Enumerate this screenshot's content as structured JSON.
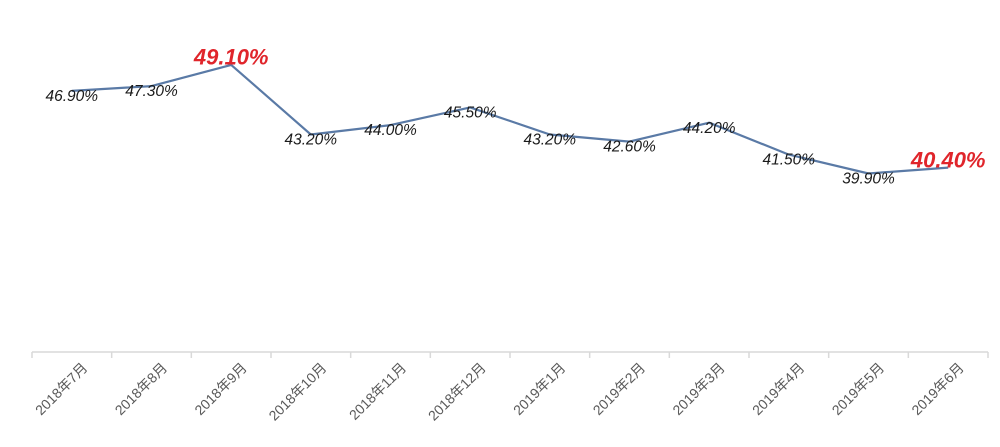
{
  "chart_data": {
    "type": "line",
    "categories": [
      "2018年7月",
      "2018年8月",
      "2018年9月",
      "2018年10月",
      "2018年11月",
      "2018年12月",
      "2019年1月",
      "2019年2月",
      "2019年3月",
      "2019年4月",
      "2019年5月",
      "2019年6月"
    ],
    "values": [
      46.9,
      47.3,
      49.1,
      43.2,
      44.0,
      45.5,
      43.2,
      42.6,
      44.2,
      41.5,
      39.9,
      40.4
    ],
    "data_labels": [
      "46.90%",
      "47.30%",
      "49.10%",
      "43.20%",
      "44.00%",
      "45.50%",
      "43.20%",
      "42.60%",
      "44.20%",
      "41.50%",
      "39.90%",
      "40.40%"
    ],
    "highlighted_indices": [
      2,
      11
    ],
    "title": "",
    "xlabel": "",
    "ylabel": "",
    "grid": false,
    "legend": "none",
    "colors": {
      "line": "#5a7aa6",
      "label": "#1a1a1a",
      "highlight": "#e0252b",
      "axis": "#d9d9d9",
      "tick_text": "#595959"
    }
  }
}
